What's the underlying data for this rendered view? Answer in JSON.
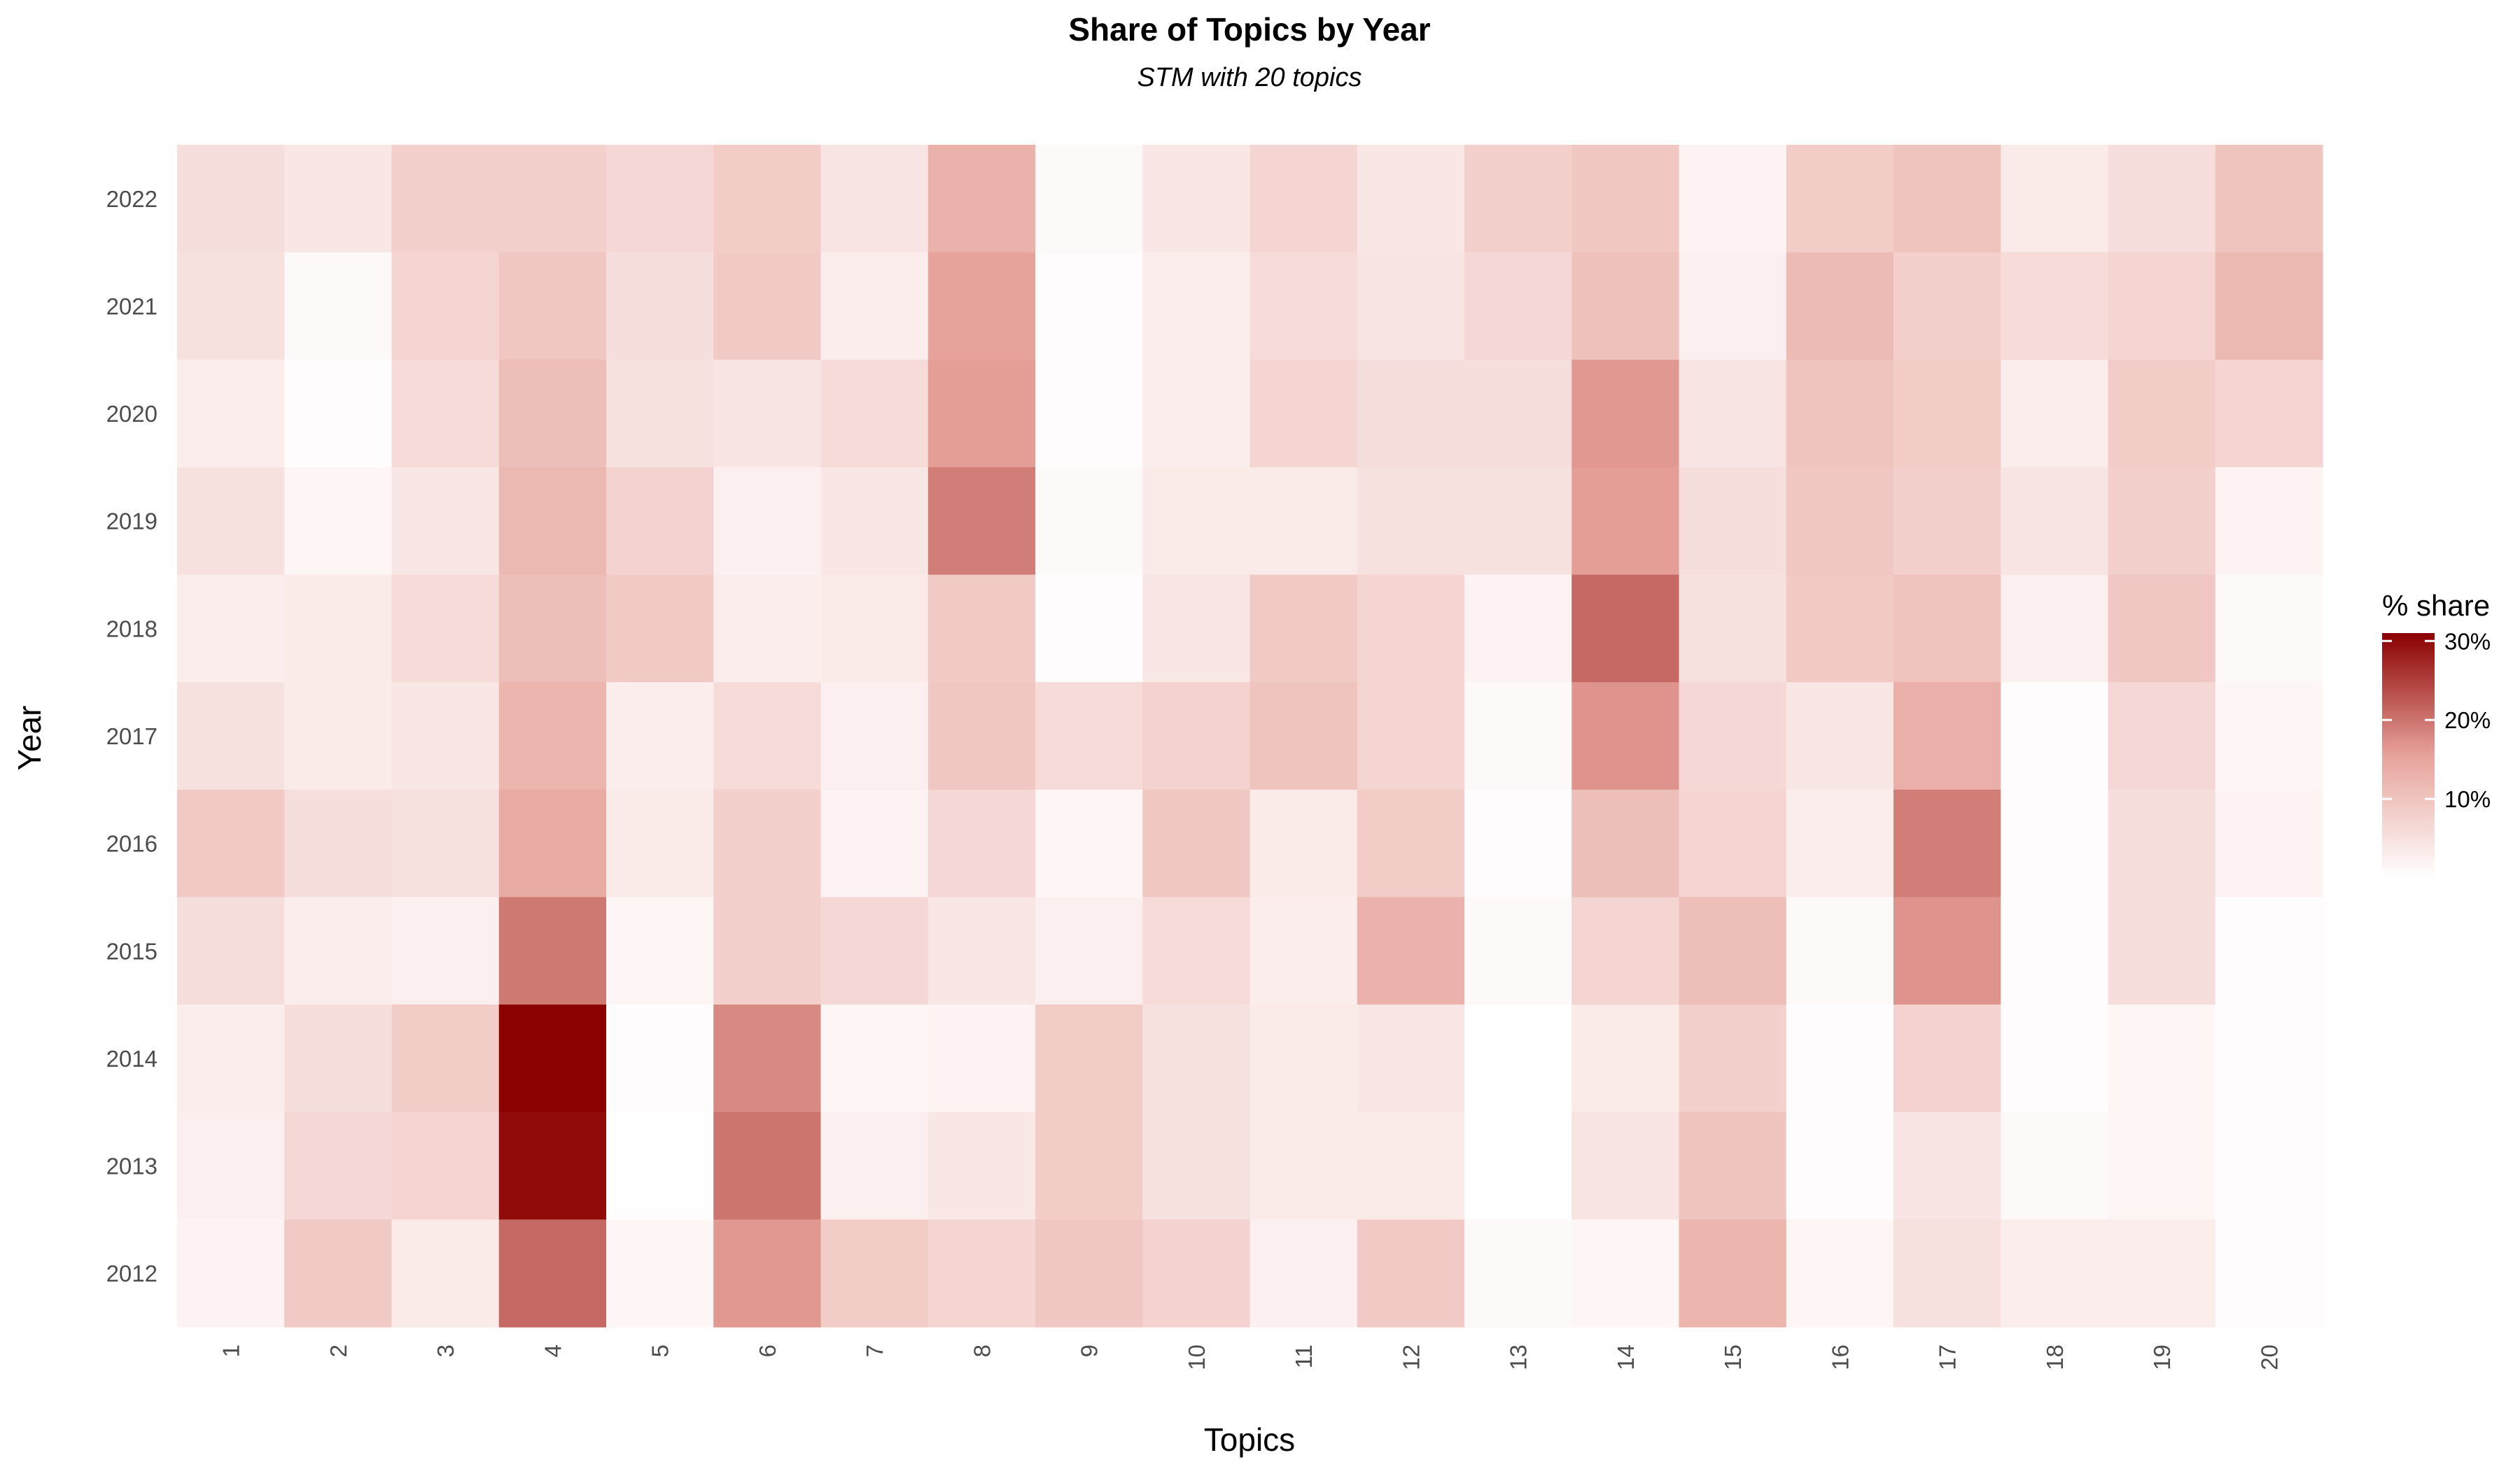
{
  "chart_data": {
    "type": "heatmap",
    "title": "Share of Topics by Year",
    "subtitle": "STM with 20 topics",
    "xlabel": "Topics",
    "ylabel": "Year",
    "x": [
      "1",
      "2",
      "3",
      "4",
      "5",
      "6",
      "7",
      "8",
      "9",
      "10",
      "11",
      "12",
      "13",
      "14",
      "15",
      "16",
      "17",
      "18",
      "19",
      "20"
    ],
    "y": [
      "2022",
      "2021",
      "2020",
      "2019",
      "2018",
      "2017",
      "2016",
      "2015",
      "2014",
      "2013",
      "2012"
    ],
    "values": [
      [
        5.5,
        4.0,
        8.0,
        8.0,
        6.5,
        8.5,
        4.5,
        13.0,
        1.0,
        4.0,
        7.0,
        4.0,
        8.0,
        9.5,
        2.0,
        8.5,
        10.0,
        3.5,
        5.5,
        10.0
      ],
      [
        5.0,
        1.0,
        7.0,
        9.5,
        5.5,
        9.0,
        3.0,
        15.5,
        0.5,
        3.0,
        6.0,
        4.5,
        6.5,
        10.5,
        2.5,
        11.5,
        8.0,
        6.0,
        7.0,
        12.0
      ],
      [
        3.0,
        0.5,
        6.0,
        11.0,
        5.0,
        4.5,
        6.0,
        16.0,
        0.5,
        3.0,
        7.0,
        5.5,
        5.5,
        16.5,
        4.5,
        10.0,
        8.5,
        3.0,
        8.5,
        7.0
      ],
      [
        5.0,
        1.5,
        4.0,
        12.0,
        7.5,
        2.5,
        4.0,
        19.0,
        1.0,
        3.5,
        3.5,
        5.0,
        5.0,
        16.0,
        5.5,
        9.5,
        8.0,
        4.5,
        8.0,
        2.0
      ],
      [
        3.0,
        3.5,
        6.0,
        11.0,
        9.0,
        3.0,
        3.5,
        9.0,
        0.5,
        4.0,
        9.0,
        7.0,
        2.0,
        21.0,
        5.0,
        9.0,
        10.0,
        2.5,
        9.5,
        1.0
      ],
      [
        5.0,
        3.5,
        4.0,
        12.5,
        3.0,
        6.0,
        2.5,
        9.5,
        6.0,
        7.5,
        10.0,
        7.0,
        1.0,
        17.0,
        6.5,
        4.0,
        13.5,
        0.5,
        6.5,
        1.5
      ],
      [
        9.0,
        5.5,
        5.0,
        14.0,
        3.5,
        8.0,
        2.0,
        6.5,
        1.5,
        9.5,
        3.5,
        8.5,
        0.5,
        11.0,
        7.0,
        3.0,
        19.0,
        0.5,
        5.5,
        2.0
      ],
      [
        5.5,
        3.0,
        2.5,
        19.5,
        1.5,
        8.0,
        6.5,
        4.0,
        2.5,
        6.0,
        3.0,
        13.0,
        1.0,
        7.0,
        11.0,
        1.0,
        17.0,
        0.5,
        5.5,
        0.5
      ],
      [
        3.0,
        5.5,
        8.5,
        31.0,
        0.5,
        18.0,
        1.5,
        2.0,
        8.5,
        5.0,
        3.5,
        4.0,
        0.1,
        3.5,
        8.0,
        0.5,
        7.5,
        0.5,
        1.5,
        0.5
      ],
      [
        2.5,
        6.5,
        7.0,
        30.0,
        0.1,
        20.0,
        2.5,
        4.0,
        8.5,
        5.0,
        3.5,
        3.5,
        0.1,
        4.5,
        10.0,
        0.5,
        4.5,
        1.0,
        1.5,
        0.5
      ],
      [
        2.0,
        9.0,
        3.5,
        21.0,
        1.5,
        16.5,
        8.5,
        7.0,
        9.5,
        7.5,
        2.5,
        9.0,
        1.0,
        1.5,
        12.5,
        1.5,
        5.0,
        3.0,
        3.0,
        0.5
      ]
    ],
    "color_low": "#ffffff",
    "color_mid": "#e7a39b",
    "color_high": "#8b0000",
    "legend": {
      "title": "% share",
      "ticks": [
        10,
        20,
        30
      ],
      "tick_labels": [
        "10%",
        "20%",
        "30%"
      ],
      "range": [
        0,
        31
      ],
      "placement": "right"
    },
    "grid": false
  }
}
